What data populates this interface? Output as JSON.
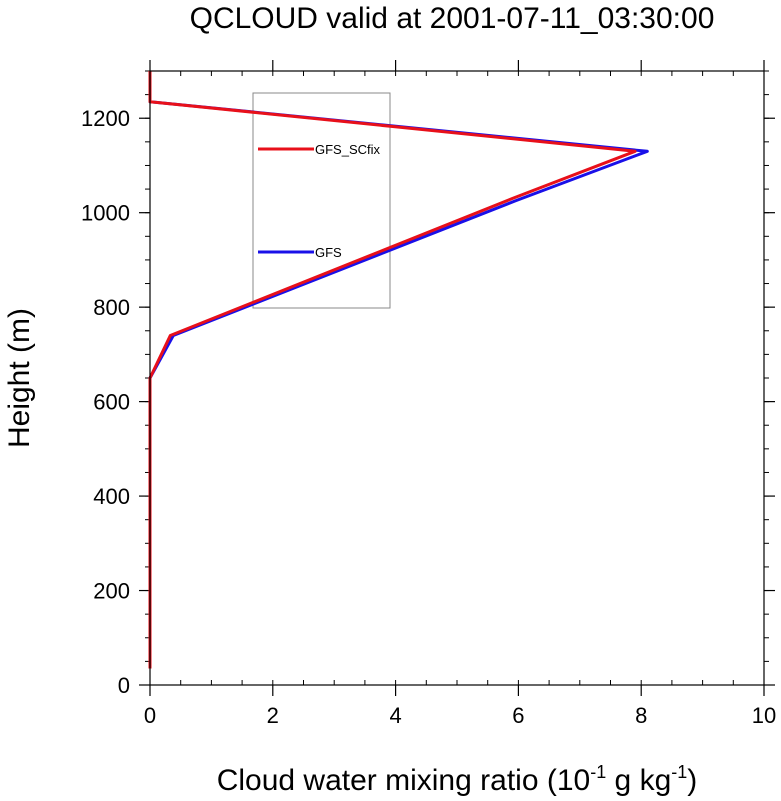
{
  "chart_data": {
    "type": "line",
    "title": "QCLOUD valid at 2001-07-11_03:30:00",
    "xlabel": {
      "prefix": "Cloud water mixing ratio (10",
      "exp1": "-1",
      "middle": " g kg",
      "exp2": "-1",
      "suffix": ")"
    },
    "ylabel": "Height (m)",
    "xlim": [
      0,
      10
    ],
    "ylim": [
      0,
      1300
    ],
    "xticks": [
      0,
      2,
      4,
      6,
      8,
      10
    ],
    "yticks": [
      0,
      200,
      400,
      600,
      800,
      1000,
      1200
    ],
    "legend_position": "upper-center",
    "series": [
      {
        "name": "GFS_SCfix",
        "color": "#e8101a",
        "x": [
          0,
          0,
          0,
          0,
          0.33,
          5.9,
          7.9,
          0,
          0
        ],
        "y": [
          35,
          200,
          400,
          650,
          740,
          1030,
          1130,
          1235,
          1300
        ]
      },
      {
        "name": "GFS",
        "color": "#1a10e8",
        "x": [
          0,
          0,
          0,
          0,
          0.38,
          5.95,
          8.1,
          0,
          0
        ],
        "y": [
          35,
          200,
          400,
          650,
          740,
          1025,
          1130,
          1235,
          1300
        ]
      }
    ]
  }
}
